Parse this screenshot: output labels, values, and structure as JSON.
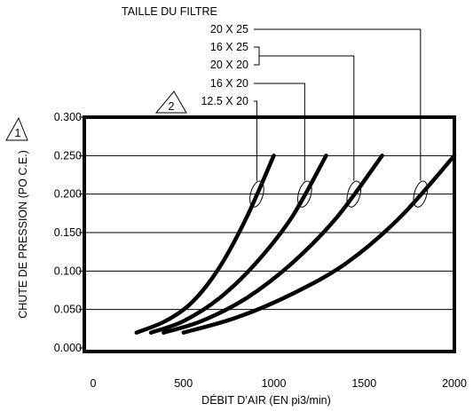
{
  "chart_data": {
    "type": "line",
    "xlabel": "DÉBIT D’AIR (EN pi3/min)",
    "ylabel": "CHUTE DE PRESSION (PO C.E.)",
    "xlim": [
      0,
      2000
    ],
    "ylim": [
      0,
      0.3
    ],
    "x_ticks": [
      "0",
      "500",
      "1000",
      "1500",
      "2000"
    ],
    "y_ticks": [
      "0.000",
      "0.050",
      "0.100",
      "0.150",
      "0.200",
      "0.250",
      "0.300"
    ],
    "grid": "horizontal",
    "legend_title": "TAILLE DU FILTRE",
    "legend_labels": [
      "20 X 25",
      "16 X 25",
      "20 X 20",
      "16 X 20",
      "12.5 X 20"
    ],
    "markers": {
      "y_axis_note": "1",
      "legend_note": "2"
    },
    "series": [
      {
        "x": [
          240,
          400,
          550,
          700,
          850,
          1000
        ],
        "y": [
          0.02,
          0.035,
          0.06,
          0.105,
          0.17,
          0.25
        ]
      },
      {
        "x": [
          320,
          500,
          700,
          900,
          1100,
          1290
        ],
        "y": [
          0.02,
          0.035,
          0.065,
          0.11,
          0.17,
          0.25
        ]
      },
      {
        "x": [
          390,
          600,
          850,
          1100,
          1350,
          1600
        ],
        "y": [
          0.02,
          0.035,
          0.065,
          0.11,
          0.17,
          0.25
        ]
      },
      {
        "x": [
          500,
          800,
          1100,
          1400,
          1700,
          2000
        ],
        "y": [
          0.02,
          0.04,
          0.07,
          0.11,
          0.17,
          0.25
        ]
      }
    ],
    "legend_targets": [
      {
        "labels": [
          0
        ],
        "series": 3
      },
      {
        "labels": [
          1,
          2
        ],
        "series": 2
      },
      {
        "labels": [
          3
        ],
        "series": 1
      },
      {
        "labels": [
          4
        ],
        "series": 0
      }
    ]
  }
}
